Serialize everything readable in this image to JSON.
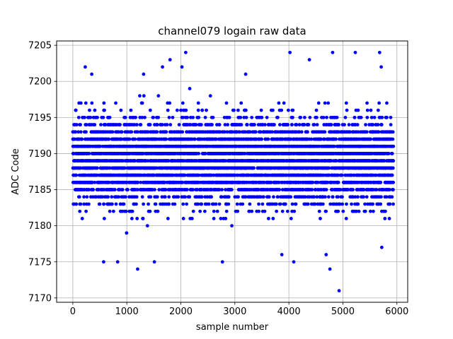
{
  "chart_data": {
    "type": "scatter",
    "title": "channel079 logain raw data",
    "xlabel": "sample number",
    "ylabel": "ADC Code",
    "xlim": [
      -300,
      6200
    ],
    "ylim": [
      7169.4,
      7205.6
    ],
    "xticks": [
      0,
      1000,
      2000,
      3000,
      4000,
      5000,
      6000
    ],
    "yticks": [
      7170,
      7175,
      7180,
      7185,
      7190,
      7195,
      7200,
      7205
    ],
    "grid": true,
    "marker_color": "#0000ff",
    "n_samples": 5936,
    "value_distribution": {
      "dense_range": [
        7181,
        7196
      ],
      "sparse_range": [
        7176,
        7203
      ],
      "center": 7189
    },
    "outliers": [
      {
        "x": 230,
        "y": 7202
      },
      {
        "x": 350,
        "y": 7201
      },
      {
        "x": 570,
        "y": 7175
      },
      {
        "x": 830,
        "y": 7175
      },
      {
        "x": 1200,
        "y": 7174
      },
      {
        "x": 1310,
        "y": 7201
      },
      {
        "x": 1510,
        "y": 7175
      },
      {
        "x": 1660,
        "y": 7202
      },
      {
        "x": 1800,
        "y": 7203
      },
      {
        "x": 2020,
        "y": 7202
      },
      {
        "x": 2090,
        "y": 7204
      },
      {
        "x": 2770,
        "y": 7175
      },
      {
        "x": 3200,
        "y": 7201
      },
      {
        "x": 3870,
        "y": 7176
      },
      {
        "x": 4020,
        "y": 7204
      },
      {
        "x": 4090,
        "y": 7175
      },
      {
        "x": 4380,
        "y": 7203
      },
      {
        "x": 4690,
        "y": 7176
      },
      {
        "x": 4760,
        "y": 7174
      },
      {
        "x": 4810,
        "y": 7204
      },
      {
        "x": 4930,
        "y": 7171
      },
      {
        "x": 5230,
        "y": 7204
      },
      {
        "x": 5680,
        "y": 7204
      },
      {
        "x": 5710,
        "y": 7202
      },
      {
        "x": 5720,
        "y": 7177
      }
    ]
  }
}
